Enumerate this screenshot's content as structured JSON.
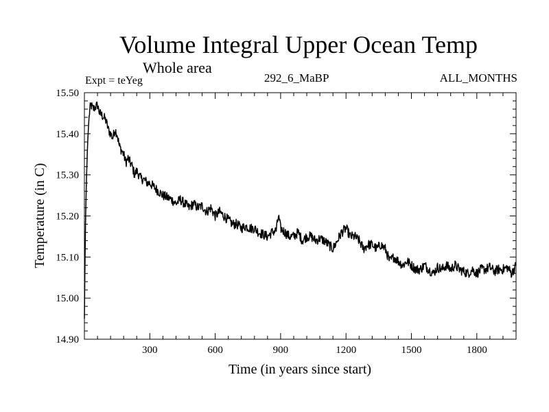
{
  "header": {
    "title": "Volume Integral Upper Ocean Temp",
    "subtitle": "Whole area",
    "expt": "Expt = teYeg",
    "run": "292_6_MaBP",
    "months": "ALL_MONTHS"
  },
  "chart_data": {
    "type": "line",
    "title": "Volume Integral Upper Ocean Temp",
    "subtitle": "Whole area",
    "xlabel": "Time (in years since start)",
    "ylabel": "Temperature (in C)",
    "xlim": [
      0,
      1980
    ],
    "ylim": [
      14.9,
      15.5
    ],
    "x_ticks": [
      300,
      600,
      900,
      1200,
      1500,
      1800
    ],
    "x_tick_labels": [
      "300",
      "600",
      "900",
      "1200",
      "1500",
      "1800"
    ],
    "y_ticks": [
      14.9,
      15.0,
      15.1,
      15.2,
      15.3,
      15.4,
      15.5
    ],
    "y_tick_labels": [
      "14.90",
      "15.00",
      "15.10",
      "15.20",
      "15.30",
      "15.40",
      "15.50"
    ],
    "grid": false,
    "series": [
      {
        "name": "teYeg",
        "x": [
          0,
          2,
          5,
          10,
          15,
          20,
          25,
          30,
          40,
          50,
          60,
          70,
          80,
          90,
          100,
          110,
          120,
          130,
          140,
          150,
          160,
          170,
          180,
          190,
          200,
          210,
          220,
          230,
          240,
          250,
          260,
          270,
          280,
          290,
          300,
          320,
          340,
          360,
          380,
          400,
          420,
          440,
          460,
          480,
          500,
          520,
          540,
          560,
          580,
          600,
          620,
          640,
          660,
          680,
          700,
          720,
          740,
          760,
          780,
          800,
          820,
          840,
          860,
          880,
          890,
          900,
          920,
          940,
          960,
          980,
          1000,
          1020,
          1040,
          1060,
          1080,
          1100,
          1120,
          1140,
          1160,
          1180,
          1200,
          1220,
          1240,
          1260,
          1280,
          1300,
          1320,
          1340,
          1360,
          1380,
          1400,
          1420,
          1440,
          1460,
          1480,
          1500,
          1520,
          1540,
          1560,
          1580,
          1600,
          1620,
          1640,
          1660,
          1680,
          1700,
          1720,
          1740,
          1760,
          1780,
          1800,
          1820,
          1840,
          1860,
          1880,
          1900,
          1920,
          1940,
          1960,
          1980
        ],
        "y": [
          14.95,
          15.05,
          15.18,
          15.3,
          15.38,
          15.43,
          15.46,
          15.47,
          15.46,
          15.465,
          15.47,
          15.45,
          15.445,
          15.44,
          15.43,
          15.41,
          15.4,
          15.39,
          15.41,
          15.4,
          15.37,
          15.36,
          15.35,
          15.33,
          15.34,
          15.33,
          15.32,
          15.3,
          15.31,
          15.3,
          15.29,
          15.29,
          15.285,
          15.28,
          15.28,
          15.27,
          15.26,
          15.25,
          15.245,
          15.24,
          15.23,
          15.24,
          15.23,
          15.22,
          15.23,
          15.22,
          15.225,
          15.21,
          15.22,
          15.2,
          15.21,
          15.2,
          15.19,
          15.18,
          15.18,
          15.17,
          15.175,
          15.17,
          15.17,
          15.16,
          15.155,
          15.15,
          15.16,
          15.165,
          15.2,
          15.17,
          15.16,
          15.15,
          15.15,
          15.16,
          15.14,
          15.15,
          15.15,
          15.14,
          15.145,
          15.14,
          15.13,
          15.12,
          15.14,
          15.16,
          15.17,
          15.15,
          15.15,
          15.14,
          15.12,
          15.13,
          15.13,
          15.12,
          15.13,
          15.12,
          15.09,
          15.1,
          15.09,
          15.08,
          15.09,
          15.08,
          15.07,
          15.07,
          15.08,
          15.07,
          15.06,
          15.075,
          15.07,
          15.08,
          15.07,
          15.08,
          15.07,
          15.065,
          15.06,
          15.07,
          15.06,
          15.07,
          15.07,
          15.075,
          15.065,
          15.07,
          15.07,
          15.075,
          15.06,
          15.08
        ]
      }
    ]
  }
}
